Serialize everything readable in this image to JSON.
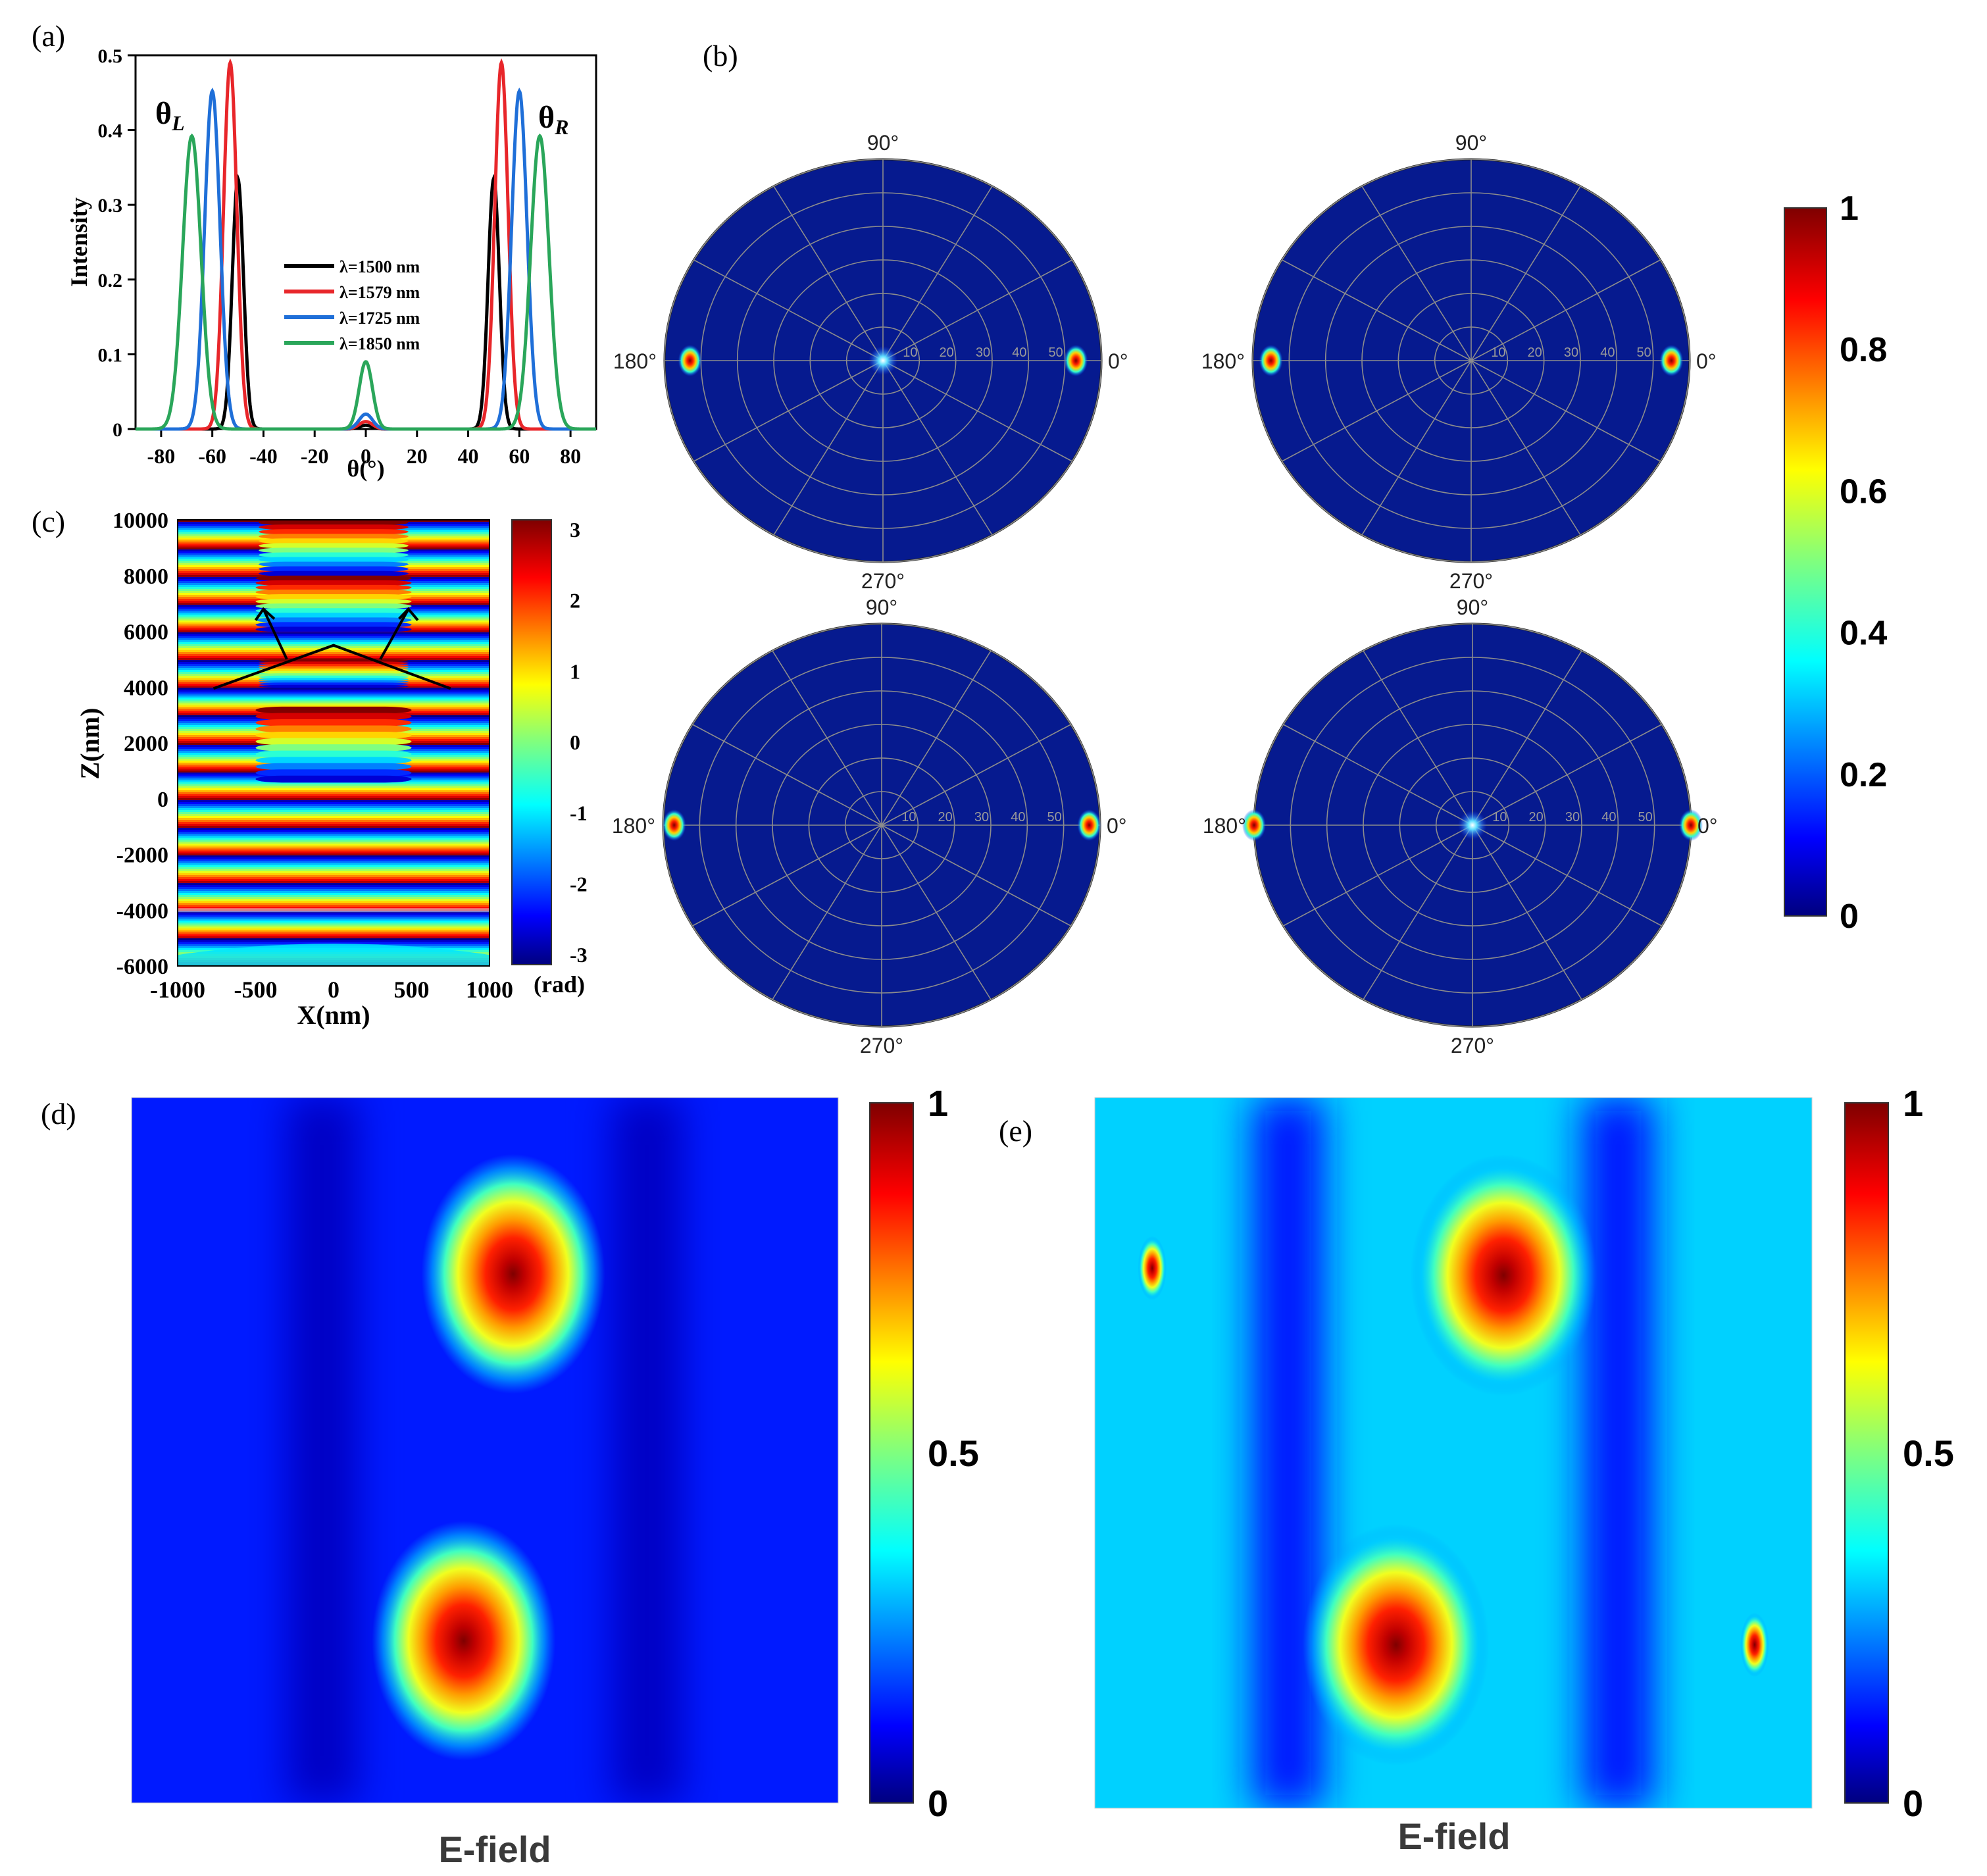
{
  "panel_labels": [
    "(a)",
    "(b)",
    "(c)",
    "(d)",
    "(e)"
  ],
  "colors": {
    "black": "#000000",
    "red": "#e8262a",
    "blue": "#1f6fd8",
    "green": "#2aa65a",
    "polar_bg": "#061a8f",
    "grid": "#8c8c8c"
  },
  "chart_data": [
    {
      "panel": "(a)",
      "type": "line",
      "xlabel": "θ(°)",
      "ylabel": "Intensity",
      "xlim": [
        -90,
        90
      ],
      "ylim": [
        0,
        0.5
      ],
      "xticks": [
        "-80",
        "-60",
        "-40",
        "-20",
        "0",
        "20",
        "40",
        "60",
        "80"
      ],
      "yticks": [
        "0",
        "0.1",
        "0.2",
        "0.3",
        "0.4",
        "0.5"
      ],
      "annotations": [
        "θL",
        "θR"
      ],
      "legend_position": "center",
      "series": [
        {
          "name": "λ=1500 nm",
          "color": "#000000",
          "peaks": [
            {
              "x": -50,
              "y": 0.335
            },
            {
              "x": 0,
              "y": 0.005
            },
            {
              "x": 50,
              "y": 0.335
            }
          ],
          "width": 2.2
        },
        {
          "name": "λ=1579 nm",
          "color": "#e8262a",
          "peaks": [
            {
              "x": -53,
              "y": 0.49
            },
            {
              "x": 0,
              "y": 0.01
            },
            {
              "x": 53,
              "y": 0.49
            }
          ],
          "width": 2.6
        },
        {
          "name": "λ=1725 nm",
          "color": "#1f6fd8",
          "peaks": [
            {
              "x": -60,
              "y": 0.452
            },
            {
              "x": 0,
              "y": 0.02
            },
            {
              "x": 60,
              "y": 0.452
            }
          ],
          "width": 3.0
        },
        {
          "name": "λ=1850 nm",
          "color": "#2aa65a",
          "peaks": [
            {
              "x": -68,
              "y": 0.392
            },
            {
              "x": 0,
              "y": 0.09
            },
            {
              "x": 68,
              "y": 0.392
            }
          ],
          "width": 3.6
        }
      ]
    },
    {
      "panel": "(b)",
      "type": "heatmap",
      "subtype": "polar",
      "angle_labels": [
        "90°",
        "180°",
        "0°",
        "270°"
      ],
      "radial_ticks": [
        "10",
        "20",
        "30",
        "40",
        "50"
      ],
      "rmax": 60,
      "plots": [
        {
          "spots": [
            {
              "theta": 180,
              "r": 53
            },
            {
              "theta": 0,
              "r": 53
            }
          ],
          "center_glow": true
        },
        {
          "spots": [
            {
              "theta": 180,
              "r": 55
            },
            {
              "theta": 0,
              "r": 55
            }
          ],
          "center_glow": false
        },
        {
          "spots": [
            {
              "theta": 180,
              "r": 57
            },
            {
              "theta": 0,
              "r": 57
            }
          ],
          "center_glow": false
        },
        {
          "spots": [
            {
              "theta": 180,
              "r": 60
            },
            {
              "theta": 0,
              "r": 60
            }
          ],
          "center_glow": true
        }
      ]
    },
    {
      "panel": "colorbar-b",
      "type": "heatmap",
      "ticks": [
        "0",
        "0.2",
        "0.4",
        "0.6",
        "0.8",
        "1"
      ],
      "range": [
        0,
        1
      ]
    },
    {
      "panel": "(c)",
      "type": "heatmap",
      "xlabel": "X(nm)",
      "ylabel": "Z(nm)",
      "xlim": [
        -1000,
        1000
      ],
      "ylim": [
        -6000,
        10000
      ],
      "xticks": [
        "-1000",
        "-500",
        "0",
        "500",
        "1000"
      ],
      "yticks": [
        "-6000",
        "-4000",
        "-2000",
        "0",
        "2000",
        "4000",
        "6000",
        "8000",
        "10000"
      ],
      "colorbar_ticks": [
        "-3",
        "-2",
        "-1",
        "0",
        "1",
        "2",
        "3"
      ],
      "colorbar_unit": "(rad)",
      "colorbar_range": [
        -3.14,
        3.14
      ]
    },
    {
      "panel": "(d)",
      "type": "heatmap",
      "caption": "E-field",
      "colorbar_ticks": [
        "0",
        "0.5",
        "1"
      ],
      "hotspots": [
        {
          "x": 0.54,
          "y": 0.25,
          "v": 1.0
        },
        {
          "x": 0.47,
          "y": 0.77,
          "v": 1.0
        }
      ],
      "background": 0.15
    },
    {
      "panel": "(e)",
      "type": "heatmap",
      "caption": "E-field",
      "colorbar_ticks": [
        "0",
        "0.5",
        "1"
      ],
      "hotspots": [
        {
          "x": 0.57,
          "y": 0.25,
          "v": 1.0
        },
        {
          "x": 0.42,
          "y": 0.77,
          "v": 1.0
        },
        {
          "x": 0.08,
          "y": 0.24,
          "v": 0.9
        },
        {
          "x": 0.92,
          "y": 0.77,
          "v": 0.9
        }
      ],
      "background": 0.33
    }
  ]
}
